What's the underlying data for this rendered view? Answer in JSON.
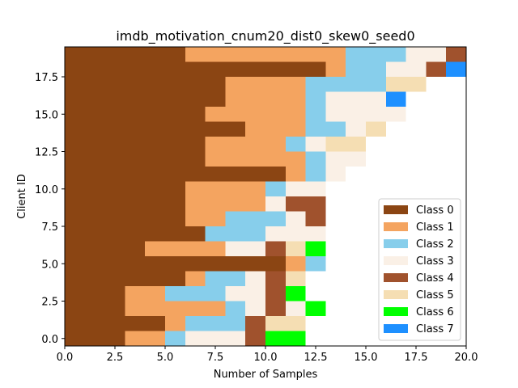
{
  "chart_data": {
    "type": "stacked-horizontal-bar",
    "title": "imdb_motivation_cnum20_dist0_skew0_seed0",
    "xlabel": "Number of Samples",
    "ylabel": "Client ID",
    "xlim": [
      0,
      20
    ],
    "ylim": [
      -0.5,
      19.5
    ],
    "xticks": [
      0.0,
      2.5,
      5.0,
      7.5,
      10.0,
      12.5,
      15.0,
      17.5,
      20.0
    ],
    "xtick_labels": [
      "0.0",
      "2.5",
      "5.0",
      "7.5",
      "10.0",
      "12.5",
      "15.0",
      "17.5",
      "20.0"
    ],
    "yticks": [
      0.0,
      2.5,
      5.0,
      7.5,
      10.0,
      12.5,
      15.0,
      17.5
    ],
    "ytick_labels": [
      "0.0",
      "2.5",
      "5.0",
      "7.5",
      "10.0",
      "12.5",
      "15.0",
      "17.5"
    ],
    "legend_position": "lower-right",
    "grid": false,
    "classes": [
      {
        "name": "Class 0",
        "color": "#8B4513"
      },
      {
        "name": "Class 1",
        "color": "#F4A460"
      },
      {
        "name": "Class 2",
        "color": "#87CEEB"
      },
      {
        "name": "Class 3",
        "color": "#FAF0E6"
      },
      {
        "name": "Class 4",
        "color": "#A0522D"
      },
      {
        "name": "Class 5",
        "color": "#F5DEB3"
      },
      {
        "name": "Class 6",
        "color": "#00FF00"
      },
      {
        "name": "Class 7",
        "color": "#1E90FF"
      }
    ],
    "clients": [
      {
        "id": 0,
        "segments": [
          {
            "class": 0,
            "count": 3
          },
          {
            "class": 1,
            "count": 2
          },
          {
            "class": 2,
            "count": 1
          },
          {
            "class": 3,
            "count": 3
          },
          {
            "class": 4,
            "count": 1
          },
          {
            "class": 6,
            "count": 2
          }
        ]
      },
      {
        "id": 1,
        "segments": [
          {
            "class": 0,
            "count": 5
          },
          {
            "class": 1,
            "count": 1
          },
          {
            "class": 2,
            "count": 3
          },
          {
            "class": 4,
            "count": 1
          },
          {
            "class": 5,
            "count": 2
          }
        ]
      },
      {
        "id": 2,
        "segments": [
          {
            "class": 0,
            "count": 3
          },
          {
            "class": 1,
            "count": 5
          },
          {
            "class": 2,
            "count": 1
          },
          {
            "class": 3,
            "count": 1
          },
          {
            "class": 4,
            "count": 1
          },
          {
            "class": 3,
            "count": 1
          },
          {
            "class": 6,
            "count": 1
          }
        ]
      },
      {
        "id": 3,
        "segments": [
          {
            "class": 0,
            "count": 3
          },
          {
            "class": 1,
            "count": 2
          },
          {
            "class": 2,
            "count": 3
          },
          {
            "class": 3,
            "count": 2
          },
          {
            "class": 4,
            "count": 1
          },
          {
            "class": 6,
            "count": 1
          }
        ]
      },
      {
        "id": 4,
        "segments": [
          {
            "class": 0,
            "count": 6
          },
          {
            "class": 1,
            "count": 1
          },
          {
            "class": 2,
            "count": 2
          },
          {
            "class": 3,
            "count": 1
          },
          {
            "class": 4,
            "count": 1
          },
          {
            "class": 5,
            "count": 1
          }
        ]
      },
      {
        "id": 5,
        "segments": [
          {
            "class": 0,
            "count": 11
          },
          {
            "class": 1,
            "count": 1
          },
          {
            "class": 2,
            "count": 1
          }
        ]
      },
      {
        "id": 6,
        "segments": [
          {
            "class": 0,
            "count": 4
          },
          {
            "class": 1,
            "count": 4
          },
          {
            "class": 3,
            "count": 2
          },
          {
            "class": 4,
            "count": 1
          },
          {
            "class": 5,
            "count": 1
          },
          {
            "class": 6,
            "count": 1
          }
        ]
      },
      {
        "id": 7,
        "segments": [
          {
            "class": 0,
            "count": 7
          },
          {
            "class": 2,
            "count": 3
          },
          {
            "class": 3,
            "count": 3
          }
        ]
      },
      {
        "id": 8,
        "segments": [
          {
            "class": 0,
            "count": 6
          },
          {
            "class": 1,
            "count": 2
          },
          {
            "class": 2,
            "count": 3
          },
          {
            "class": 3,
            "count": 1
          },
          {
            "class": 4,
            "count": 1
          }
        ]
      },
      {
        "id": 9,
        "segments": [
          {
            "class": 0,
            "count": 6
          },
          {
            "class": 1,
            "count": 4
          },
          {
            "class": 3,
            "count": 1
          },
          {
            "class": 4,
            "count": 2
          }
        ]
      },
      {
        "id": 10,
        "segments": [
          {
            "class": 0,
            "count": 6
          },
          {
            "class": 1,
            "count": 4
          },
          {
            "class": 2,
            "count": 1
          },
          {
            "class": 3,
            "count": 2
          }
        ]
      },
      {
        "id": 11,
        "segments": [
          {
            "class": 0,
            "count": 11
          },
          {
            "class": 1,
            "count": 1
          },
          {
            "class": 2,
            "count": 1
          },
          {
            "class": 3,
            "count": 1
          }
        ]
      },
      {
        "id": 12,
        "segments": [
          {
            "class": 0,
            "count": 7
          },
          {
            "class": 1,
            "count": 5
          },
          {
            "class": 2,
            "count": 1
          },
          {
            "class": 3,
            "count": 2
          }
        ]
      },
      {
        "id": 13,
        "segments": [
          {
            "class": 0,
            "count": 7
          },
          {
            "class": 1,
            "count": 4
          },
          {
            "class": 2,
            "count": 1
          },
          {
            "class": 3,
            "count": 1
          },
          {
            "class": 5,
            "count": 2
          }
        ]
      },
      {
        "id": 14,
        "segments": [
          {
            "class": 0,
            "count": 9
          },
          {
            "class": 1,
            "count": 3
          },
          {
            "class": 2,
            "count": 2
          },
          {
            "class": 3,
            "count": 1
          },
          {
            "class": 5,
            "count": 1
          }
        ]
      },
      {
        "id": 15,
        "segments": [
          {
            "class": 0,
            "count": 7
          },
          {
            "class": 1,
            "count": 5
          },
          {
            "class": 2,
            "count": 1
          },
          {
            "class": 3,
            "count": 4
          }
        ]
      },
      {
        "id": 16,
        "segments": [
          {
            "class": 0,
            "count": 8
          },
          {
            "class": 1,
            "count": 4
          },
          {
            "class": 2,
            "count": 1
          },
          {
            "class": 3,
            "count": 3
          },
          {
            "class": 7,
            "count": 1
          }
        ]
      },
      {
        "id": 17,
        "segments": [
          {
            "class": 0,
            "count": 8
          },
          {
            "class": 1,
            "count": 4
          },
          {
            "class": 2,
            "count": 4
          },
          {
            "class": 5,
            "count": 2
          }
        ]
      },
      {
        "id": 18,
        "segments": [
          {
            "class": 0,
            "count": 13
          },
          {
            "class": 1,
            "count": 1
          },
          {
            "class": 2,
            "count": 2
          },
          {
            "class": 3,
            "count": 2
          },
          {
            "class": 4,
            "count": 1
          },
          {
            "class": 7,
            "count": 1
          }
        ]
      },
      {
        "id": 19,
        "segments": [
          {
            "class": 0,
            "count": 6
          },
          {
            "class": 1,
            "count": 8
          },
          {
            "class": 2,
            "count": 3
          },
          {
            "class": 3,
            "count": 2
          },
          {
            "class": 4,
            "count": 1
          }
        ]
      }
    ]
  }
}
